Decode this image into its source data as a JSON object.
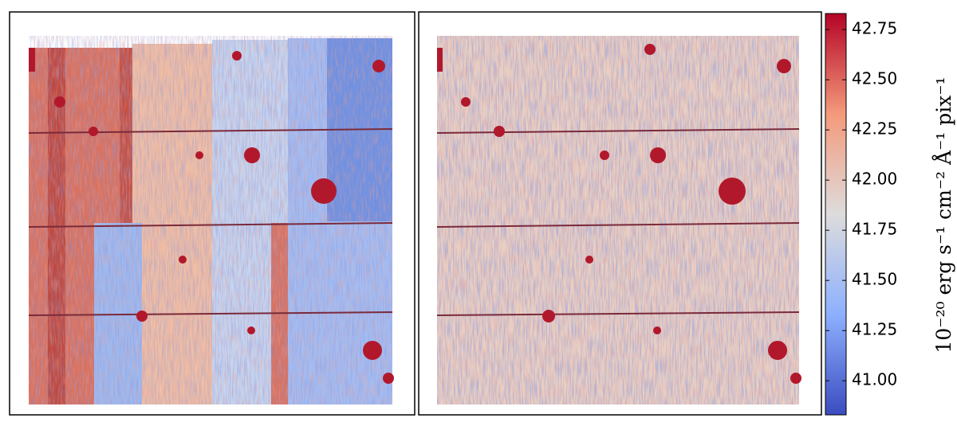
{
  "chart_data": {
    "type": "image",
    "ylabel": "10⁻²⁰ erg s⁻¹ cm⁻² Å⁻¹ pix⁻¹",
    "ylim": [
      40.83,
      42.83
    ],
    "yticks": [
      {
        "value": 41.0,
        "label": "41.00"
      },
      {
        "value": 41.25,
        "label": "41.25"
      },
      {
        "value": 41.5,
        "label": "41.50"
      },
      {
        "value": 41.75,
        "label": "41.75"
      },
      {
        "value": 42.0,
        "label": "42.00"
      },
      {
        "value": 42.25,
        "label": "42.25"
      },
      {
        "value": 42.5,
        "label": "42.50"
      },
      {
        "value": 42.75,
        "label": "42.75"
      }
    ],
    "colormap": [
      "#3b4cc0",
      "#8db0fe",
      "#dddcdc",
      "#f49a7b",
      "#b40426"
    ]
  }
}
